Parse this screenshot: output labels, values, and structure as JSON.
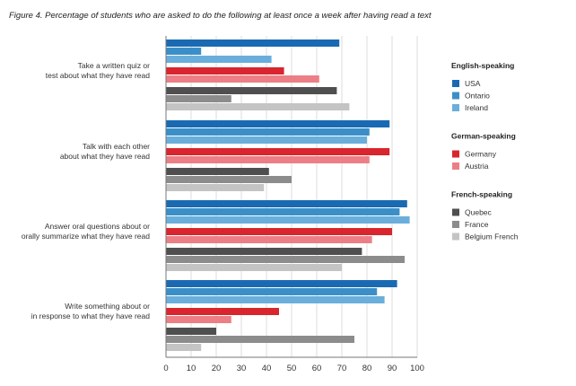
{
  "chart_data": {
    "type": "bar",
    "orientation": "horizontal",
    "title": "Figure 4. Percentage of students who are asked to do the following at least once a week after having read a text",
    "categories": [
      [
        "Take a written quiz or",
        "test about what they have read"
      ],
      [
        "Talk with each other",
        "about what they have read"
      ],
      [
        "Answer oral questions about or",
        "orally summarize what they have read"
      ],
      [
        "Write something about or",
        "in response to what they have read"
      ]
    ],
    "series": [
      {
        "name": "USA",
        "group": "English-speaking",
        "color": "#1a6ab3",
        "values": [
          69,
          89,
          96,
          92
        ]
      },
      {
        "name": "Ontario",
        "group": "English-speaking",
        "color": "#3b8fc8",
        "values": [
          14,
          81,
          93,
          84
        ]
      },
      {
        "name": "Ireland",
        "group": "English-speaking",
        "color": "#6aaedb",
        "values": [
          42,
          80,
          97,
          87
        ]
      },
      {
        "name": "Germany",
        "group": "German-speaking",
        "color": "#d9252d",
        "values": [
          47,
          89,
          90,
          45
        ]
      },
      {
        "name": "Austria",
        "group": "German-speaking",
        "color": "#ec7f86",
        "values": [
          61,
          81,
          82,
          26
        ]
      },
      {
        "name": "Quebec",
        "group": "French-speaking",
        "color": "#4f4f4f",
        "values": [
          68,
          41,
          78,
          20
        ]
      },
      {
        "name": "France",
        "group": "French-speaking",
        "color": "#8c8c8c",
        "values": [
          26,
          50,
          95,
          75
        ]
      },
      {
        "name": "Belgium French",
        "group": "French-speaking",
        "color": "#c4c4c4",
        "values": [
          73,
          39,
          70,
          14
        ]
      }
    ],
    "legend_groups": [
      {
        "title": "English-speaking",
        "items": [
          "USA",
          "Ontario",
          "Ireland"
        ]
      },
      {
        "title": "German-speaking",
        "items": [
          "Germany",
          "Austria"
        ]
      },
      {
        "title": "French-speaking",
        "items": [
          "Quebec",
          "France",
          "Belgium French"
        ]
      }
    ],
    "xticks": [
      0,
      10,
      20,
      30,
      40,
      50,
      60,
      70,
      80,
      90,
      100
    ],
    "xlim": [
      0,
      100
    ],
    "grid": "vertical",
    "legend_position": "right"
  }
}
